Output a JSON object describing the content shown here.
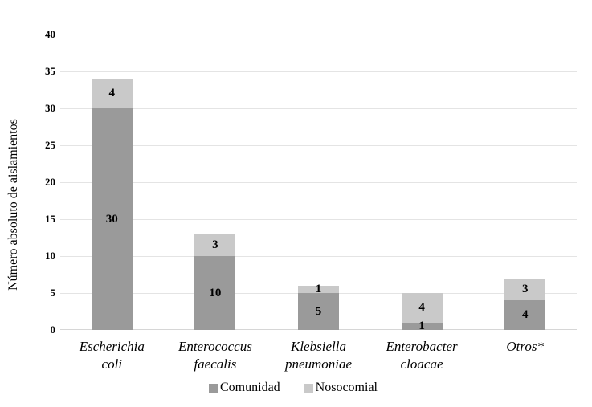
{
  "chart_data": {
    "type": "bar",
    "stacked": true,
    "title": "",
    "xlabel": "",
    "ylabel": "Número absoluto de aislamientos",
    "ylim": [
      0,
      40
    ],
    "ytick_step": 5,
    "grid": true,
    "legend_position": "bottom",
    "categories": [
      "Escherichia coli",
      "Enterococcus faecalis",
      "Klebsiella pneumoniae",
      "Enterobacter cloacae",
      "Otros*"
    ],
    "category_lines": [
      [
        "Escherichia",
        "coli"
      ],
      [
        "Enterococcus",
        "faecalis"
      ],
      [
        "Klebsiella",
        "pneumoniae"
      ],
      [
        "Enterobacter",
        "cloacae"
      ],
      [
        "Otros*"
      ]
    ],
    "series": [
      {
        "name": "Comunidad",
        "color": "#9a9a9a",
        "values": [
          30,
          10,
          5,
          1,
          4
        ]
      },
      {
        "name": "Nosocomial",
        "color": "#c9c9c9",
        "values": [
          4,
          3,
          1,
          4,
          3
        ]
      }
    ],
    "totals": [
      34,
      13,
      6,
      5,
      7
    ]
  },
  "colors": {
    "gridline": "#e4e4e4",
    "baseline": "#d6d6d6",
    "label_text": "#000000",
    "background": "#ffffff"
  }
}
